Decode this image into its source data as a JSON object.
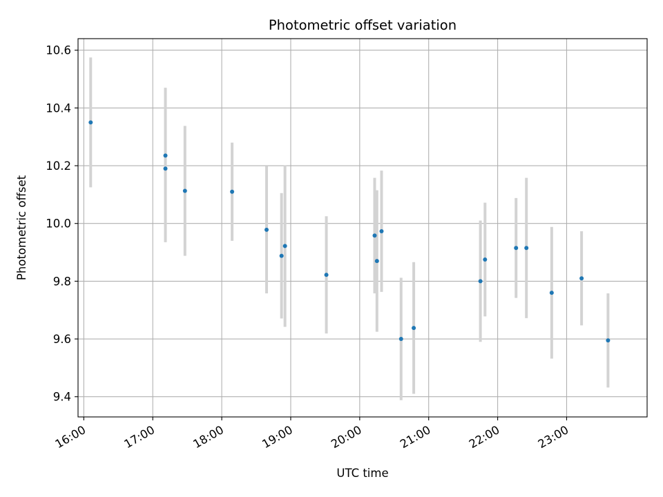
{
  "chart_data": {
    "type": "scatter",
    "title": "Photometric offset variation",
    "xlabel": "UTC time",
    "ylabel": "Photometric offset",
    "x_unit": "time (UTC, HH:MM)",
    "xlim": [
      "15:55",
      "24:10"
    ],
    "ylim": [
      9.33,
      10.64
    ],
    "x_ticks": [
      "16:00",
      "17:00",
      "18:00",
      "19:00",
      "20:00",
      "21:00",
      "22:00",
      "23:00"
    ],
    "y_ticks": [
      9.4,
      9.6,
      9.8,
      10.0,
      10.2,
      10.4,
      10.6
    ],
    "y_tick_labels": [
      "9.4",
      "9.6",
      "9.8",
      "10.0",
      "10.2",
      "10.4",
      "10.6"
    ],
    "grid": true,
    "marker_color": "#1f77b4",
    "errorbar_color": "#d3d3d3",
    "points": [
      {
        "x": "16:06",
        "y": 10.35,
        "err": 0.225
      },
      {
        "x": "17:11",
        "y": 10.235,
        "err": 0.235
      },
      {
        "x": "17:11",
        "y": 10.19,
        "err": 0.255
      },
      {
        "x": "17:28",
        "y": 10.113,
        "err": 0.225
      },
      {
        "x": "18:09",
        "y": 10.11,
        "err": 0.17
      },
      {
        "x": "18:39",
        "y": 9.978,
        "err": 0.22
      },
      {
        "x": "18:52",
        "y": 9.888,
        "err": 0.217
      },
      {
        "x": "18:55",
        "y": 9.922,
        "err": 0.28
      },
      {
        "x": "19:31",
        "y": 9.822,
        "err": 0.203
      },
      {
        "x": "20:13",
        "y": 9.958,
        "err": 0.2
      },
      {
        "x": "20:15",
        "y": 9.87,
        "err": 0.245
      },
      {
        "x": "20:19",
        "y": 9.973,
        "err": 0.21
      },
      {
        "x": "20:36",
        "y": 9.6,
        "err": 0.212
      },
      {
        "x": "20:47",
        "y": 9.638,
        "err": 0.228
      },
      {
        "x": "21:45",
        "y": 9.8,
        "err": 0.21
      },
      {
        "x": "21:49",
        "y": 9.875,
        "err": 0.197
      },
      {
        "x": "22:16",
        "y": 9.915,
        "err": 0.173
      },
      {
        "x": "22:25",
        "y": 9.915,
        "err": 0.243
      },
      {
        "x": "22:47",
        "y": 9.76,
        "err": 0.228
      },
      {
        "x": "23:13",
        "y": 9.81,
        "err": 0.163
      },
      {
        "x": "23:36",
        "y": 9.595,
        "err": 0.163
      }
    ]
  }
}
